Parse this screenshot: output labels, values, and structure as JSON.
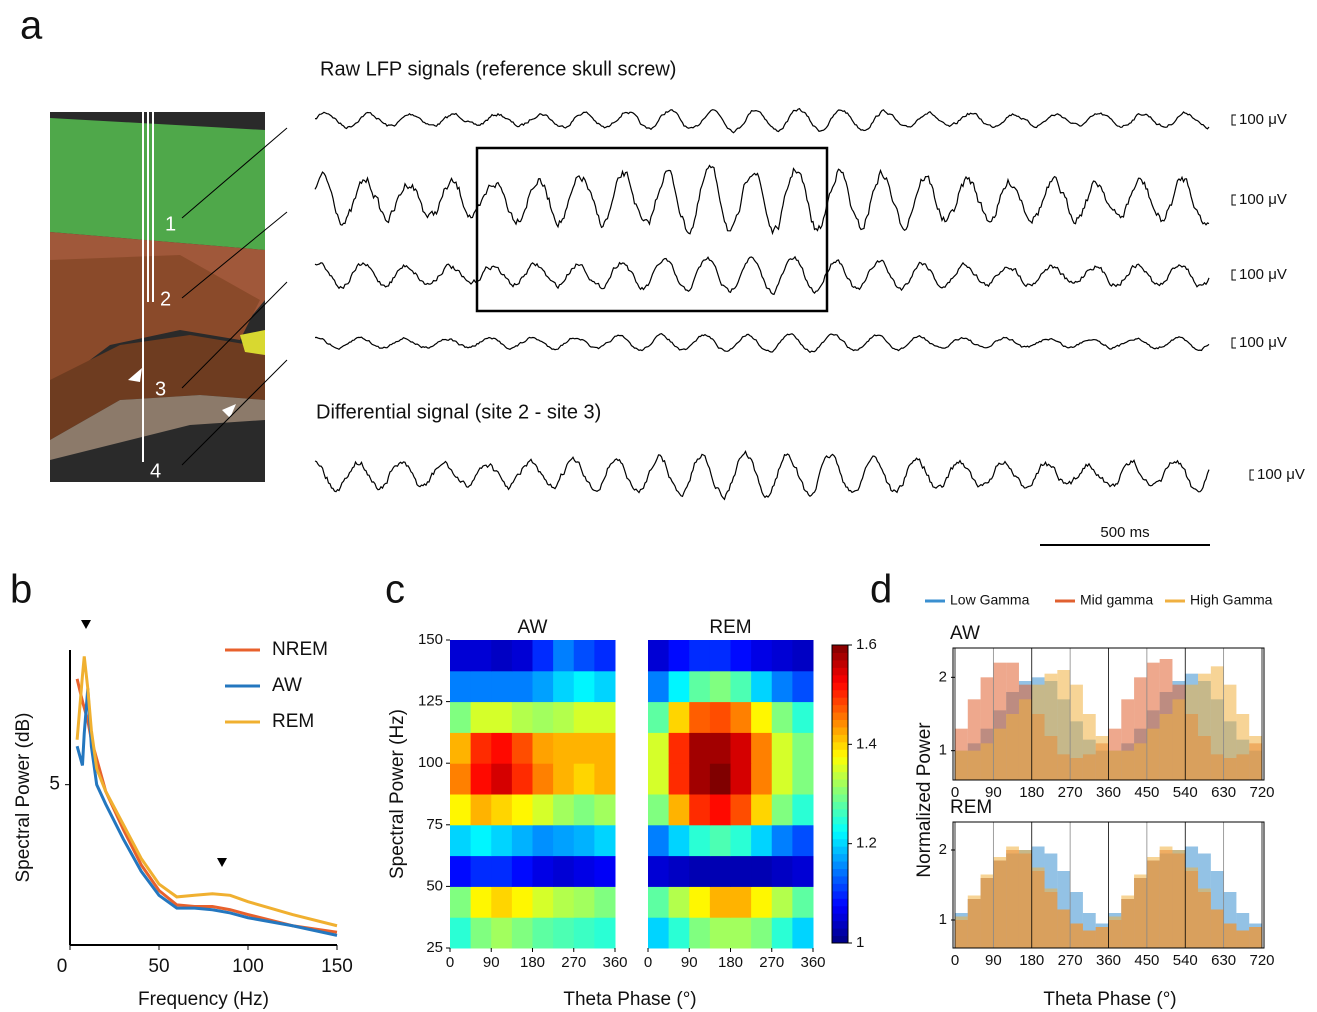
{
  "panel_labels": [
    "a",
    "b",
    "c",
    "d"
  ],
  "panel_a": {
    "raw_title": "Raw LFP signals (reference skull screw)",
    "diff_title": "Differential signal (site 2 - site 3)",
    "scale_labels": [
      "100 μV",
      "100 μV",
      "100 μV",
      "100 μV",
      "100 μV"
    ],
    "sites": [
      "1",
      "2",
      "3",
      "4"
    ],
    "time_scale": "500 ms"
  },
  "chart_data": [
    {
      "type": "line",
      "xlabel": "Frequency (Hz)",
      "ylabel": "Spectral Power (dB)",
      "x": [
        4,
        7,
        8,
        10,
        12,
        15,
        20,
        30,
        40,
        50,
        60,
        70,
        80,
        90,
        100,
        125,
        150
      ],
      "xlim": [
        0,
        150
      ],
      "xticks": [
        0,
        50,
        100,
        150
      ],
      "ylim": [
        0,
        9.2
      ],
      "yticks": [
        5
      ],
      "legend": "upper right",
      "series": [
        {
          "name": "NREM",
          "color": "#e8612c",
          "values": [
            8.3,
            7.6,
            7.4,
            7.0,
            6.4,
            5.8,
            4.8,
            3.6,
            2.5,
            1.7,
            1.25,
            1.2,
            1.2,
            1.1,
            0.95,
            0.6,
            0.4
          ]
        },
        {
          "name": "AW",
          "color": "#2477bf",
          "values": [
            6.2,
            5.6,
            6.6,
            8.0,
            6.2,
            5.0,
            4.4,
            3.3,
            2.3,
            1.55,
            1.15,
            1.15,
            1.1,
            1.0,
            0.85,
            0.6,
            0.3
          ]
        },
        {
          "name": "REM",
          "color": "#f0b030",
          "values": [
            6.4,
            8.4,
            9.0,
            8.0,
            6.7,
            5.5,
            4.8,
            3.75,
            2.7,
            1.9,
            1.5,
            1.55,
            1.6,
            1.55,
            1.35,
            0.95,
            0.6
          ]
        }
      ]
    },
    {
      "type": "heatmap",
      "xlabel": "Theta Phase (°)",
      "ylabel": "Spectral Power (Hz)",
      "x": [
        22.5,
        67.5,
        112.5,
        157.5,
        202.5,
        247.5,
        292.5,
        337.5
      ],
      "y": [
        31.25,
        43.75,
        56.25,
        68.75,
        81.25,
        93.75,
        106.25,
        118.75,
        131.25,
        143.75
      ],
      "xlim": [
        0,
        360
      ],
      "xticks": [
        0,
        90,
        180,
        270,
        360
      ],
      "ylim": [
        25,
        150
      ],
      "yticks": [
        25,
        50,
        75,
        100,
        125,
        150
      ],
      "colormap": "jet",
      "clim": [
        1,
        1.6
      ],
      "cticks": [
        1,
        1.2,
        1.4,
        1.6
      ],
      "panels": [
        {
          "title": "AW",
          "z": [
            [
              1.25,
              1.3,
              1.32,
              1.3,
              1.28,
              1.27,
              1.26,
              1.25
            ],
            [
              1.3,
              1.38,
              1.4,
              1.38,
              1.35,
              1.33,
              1.32,
              1.3
            ],
            [
              1.08,
              1.1,
              1.1,
              1.08,
              1.06,
              1.05,
              1.06,
              1.07
            ],
            [
              1.2,
              1.22,
              1.2,
              1.18,
              1.16,
              1.17,
              1.18,
              1.2
            ],
            [
              1.38,
              1.42,
              1.4,
              1.38,
              1.35,
              1.32,
              1.3,
              1.32
            ],
            [
              1.45,
              1.52,
              1.55,
              1.5,
              1.45,
              1.42,
              1.4,
              1.42
            ],
            [
              1.42,
              1.5,
              1.52,
              1.48,
              1.43,
              1.42,
              1.42,
              1.42
            ],
            [
              1.3,
              1.35,
              1.35,
              1.33,
              1.32,
              1.33,
              1.35,
              1.35
            ],
            [
              1.15,
              1.15,
              1.15,
              1.15,
              1.17,
              1.2,
              1.22,
              1.2
            ],
            [
              1.05,
              1.05,
              1.04,
              1.05,
              1.1,
              1.15,
              1.12,
              1.1
            ]
          ]
        },
        {
          "title": "REM",
          "z": [
            [
              1.2,
              1.25,
              1.3,
              1.32,
              1.32,
              1.3,
              1.25,
              1.2
            ],
            [
              1.28,
              1.33,
              1.38,
              1.42,
              1.42,
              1.38,
              1.33,
              1.28
            ],
            [
              1.05,
              1.04,
              1.03,
              1.03,
              1.03,
              1.03,
              1.04,
              1.05
            ],
            [
              1.15,
              1.2,
              1.25,
              1.27,
              1.25,
              1.2,
              1.15,
              1.12
            ],
            [
              1.3,
              1.42,
              1.5,
              1.52,
              1.48,
              1.4,
              1.3,
              1.25
            ],
            [
              1.35,
              1.5,
              1.58,
              1.6,
              1.55,
              1.45,
              1.35,
              1.3
            ],
            [
              1.35,
              1.5,
              1.58,
              1.58,
              1.55,
              1.45,
              1.35,
              1.3
            ],
            [
              1.28,
              1.4,
              1.47,
              1.48,
              1.45,
              1.38,
              1.3,
              1.25
            ],
            [
              1.15,
              1.22,
              1.28,
              1.3,
              1.27,
              1.2,
              1.15,
              1.12
            ],
            [
              1.05,
              1.08,
              1.1,
              1.1,
              1.08,
              1.06,
              1.05,
              1.04
            ]
          ]
        }
      ]
    },
    {
      "type": "histogram",
      "xlabel": "Theta Phase (°)",
      "ylabel": "Normalized Power",
      "bins": [
        0,
        30,
        60,
        90,
        120,
        150,
        180,
        210,
        240,
        270,
        300,
        330,
        360,
        390,
        420,
        450,
        480,
        510,
        540,
        570,
        600,
        630,
        660,
        690,
        720
      ],
      "xlim": [
        0,
        720
      ],
      "xticks": [
        0,
        90,
        180,
        270,
        360,
        450,
        540,
        630,
        720
      ],
      "ylim": [
        0.6,
        2.4
      ],
      "yticks": [
        1,
        2
      ],
      "legend": "top",
      "series": [
        {
          "name": "Low Gamma",
          "color": "#3a8fd0"
        },
        {
          "name": "Mid gamma",
          "color": "#e06030"
        },
        {
          "name": "High Gamma",
          "color": "#f0b040"
        }
      ],
      "panels": [
        {
          "title": "AW",
          "values": [
            [
              1.0,
              1.1,
              1.3,
              1.55,
              1.8,
              1.95,
              2.0,
              1.95,
              1.7,
              1.4,
              1.15,
              1.0,
              1.0,
              1.1,
              1.3,
              1.55,
              1.8,
              1.95,
              2.05,
              1.95,
              1.7,
              1.4,
              1.15,
              1.0
            ],
            [
              1.3,
              1.7,
              2.0,
              2.2,
              2.2,
              1.9,
              1.5,
              1.2,
              0.95,
              0.9,
              0.95,
              1.1,
              1.3,
              1.7,
              2.0,
              2.2,
              2.25,
              1.9,
              1.5,
              1.2,
              0.95,
              0.9,
              0.95,
              1.1
            ],
            [
              1.0,
              1.0,
              1.1,
              1.3,
              1.5,
              1.7,
              1.9,
              2.05,
              2.1,
              1.9,
              1.5,
              1.2,
              1.0,
              1.0,
              1.1,
              1.3,
              1.5,
              1.7,
              1.9,
              2.05,
              2.15,
              1.9,
              1.5,
              1.2
            ]
          ]
        },
        {
          "title": "REM",
          "values": [
            [
              1.1,
              1.3,
              1.6,
              1.85,
              1.95,
              2.0,
              2.05,
              1.95,
              1.7,
              1.4,
              1.1,
              0.95,
              1.1,
              1.3,
              1.6,
              1.85,
              1.95,
              2.0,
              2.05,
              1.95,
              1.7,
              1.4,
              1.1,
              0.95
            ],
            [
              1.0,
              1.3,
              1.6,
              1.85,
              2.0,
              1.95,
              1.7,
              1.4,
              1.15,
              0.95,
              0.85,
              0.9,
              1.0,
              1.3,
              1.6,
              1.85,
              2.0,
              1.95,
              1.7,
              1.4,
              1.15,
              0.95,
              0.85,
              0.9
            ],
            [
              1.05,
              1.35,
              1.65,
              1.9,
              2.05,
              2.0,
              1.75,
              1.45,
              1.15,
              0.95,
              0.85,
              0.9,
              1.05,
              1.35,
              1.65,
              1.9,
              2.05,
              2.0,
              1.75,
              1.45,
              1.15,
              0.95,
              0.85,
              0.9
            ]
          ]
        }
      ]
    }
  ]
}
